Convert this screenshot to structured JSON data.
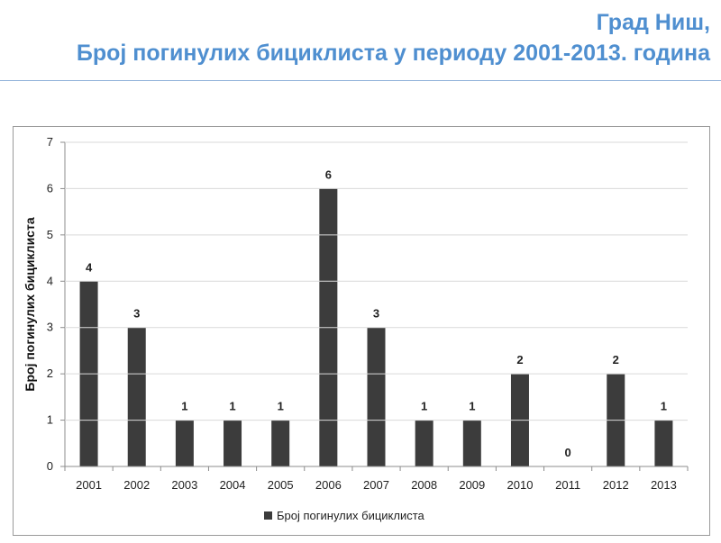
{
  "header": {
    "line1": "Град Ниш,",
    "line2": "Број погинулих бициклиста у периоду 2001-2013. година"
  },
  "colors": {
    "title": "#4f8fd0",
    "bar": "#3c3c3c",
    "grid": "#d9d9d9",
    "rule": "#8fb1d9"
  },
  "chart_data": {
    "type": "bar",
    "title": "",
    "xlabel": "",
    "ylabel": "Број погинулих бициклиста",
    "categories": [
      "2001",
      "2002",
      "2003",
      "2004",
      "2005",
      "2006",
      "2007",
      "2008",
      "2009",
      "2010",
      "2011",
      "2012",
      "2013"
    ],
    "values": [
      4,
      3,
      1,
      1,
      1,
      6,
      3,
      1,
      1,
      2,
      0,
      2,
      1
    ],
    "yticks": [
      0,
      1,
      2,
      3,
      4,
      5,
      6,
      7
    ],
    "ylim": [
      0,
      7
    ],
    "grid": true,
    "legend": {
      "label": "Број погинулих бициклиста",
      "position": "bottom"
    },
    "data_labels": true
  }
}
